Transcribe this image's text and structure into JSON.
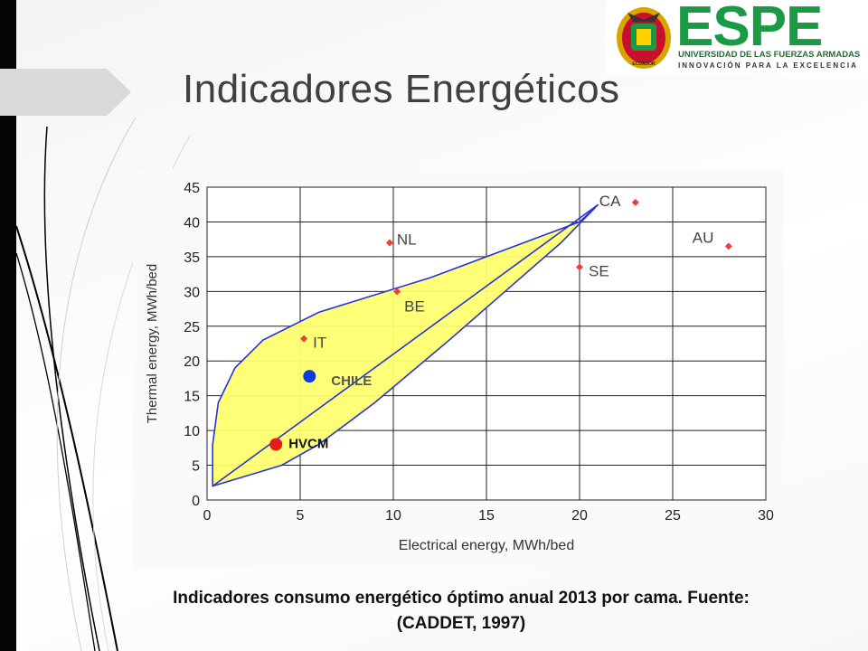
{
  "slide": {
    "title": "Indicadores Energéticos",
    "caption_line1": "Indicadores consumo energético óptimo  anual 2013 por cama. Fuente:",
    "caption_line2": "(CADDET, 1997)"
  },
  "logo": {
    "name": "ESPE",
    "subtitle": "UNIVERSIDAD DE LAS FUERZAS ARMADAS",
    "slogan": "INNOVACIÓN PARA LA EXCELENCIA",
    "seal_text": "ECUADOR",
    "colors": {
      "green": "#1a9a45",
      "gold": "#d9a400",
      "red": "#c8102e"
    }
  },
  "chart_data": {
    "type": "scatter",
    "title": "",
    "xlabel": "Electrical energy, MWh/bed",
    "ylabel": "Thermal energy, MWh/bed",
    "xlim": [
      0,
      30
    ],
    "ylim": [
      0,
      45
    ],
    "xticks": [
      0,
      5,
      10,
      15,
      20,
      25,
      30
    ],
    "yticks": [
      0,
      5,
      10,
      15,
      20,
      25,
      30,
      35,
      40,
      45
    ],
    "grid": true,
    "points": [
      {
        "label": "CA",
        "x": 23.0,
        "y": 42.8,
        "color": "#e8413b",
        "marker": "diamond"
      },
      {
        "label": "AU",
        "x": 28.0,
        "y": 36.5,
        "color": "#e8413b",
        "marker": "diamond"
      },
      {
        "label": "NL",
        "x": 9.8,
        "y": 37.0,
        "color": "#e8413b",
        "marker": "diamond"
      },
      {
        "label": "SE",
        "x": 20.0,
        "y": 33.5,
        "color": "#e8413b",
        "marker": "diamond"
      },
      {
        "label": "BE",
        "x": 10.2,
        "y": 30.0,
        "color": "#e8413b",
        "marker": "diamond"
      },
      {
        "label": "IT",
        "x": 5.2,
        "y": 23.2,
        "color": "#e8413b",
        "marker": "diamond"
      },
      {
        "label": "CHILE",
        "x": 5.5,
        "y": 17.8,
        "color": "#0a3cd6",
        "marker": "circle"
      },
      {
        "label": "HVCM",
        "x": 3.7,
        "y": 8.0,
        "color": "#e81a1a",
        "marker": "circle"
      }
    ],
    "envelope": {
      "upper": [
        [
          0.3,
          2
        ],
        [
          0.3,
          8
        ],
        [
          0.6,
          14
        ],
        [
          1.5,
          19
        ],
        [
          3,
          23
        ],
        [
          6,
          27
        ],
        [
          12,
          32
        ],
        [
          20,
          40
        ],
        [
          21,
          42.5
        ]
      ],
      "lower": [
        [
          21,
          42.5
        ],
        [
          19,
          37
        ],
        [
          16,
          30
        ],
        [
          13,
          23
        ],
        [
          9,
          14
        ],
        [
          6,
          8
        ],
        [
          4,
          5
        ],
        [
          0.3,
          2
        ]
      ],
      "diagonal": [
        [
          0.3,
          2
        ],
        [
          21,
          42.5
        ]
      ],
      "fill": "#ffff70",
      "stroke": "#2a33d6"
    }
  }
}
